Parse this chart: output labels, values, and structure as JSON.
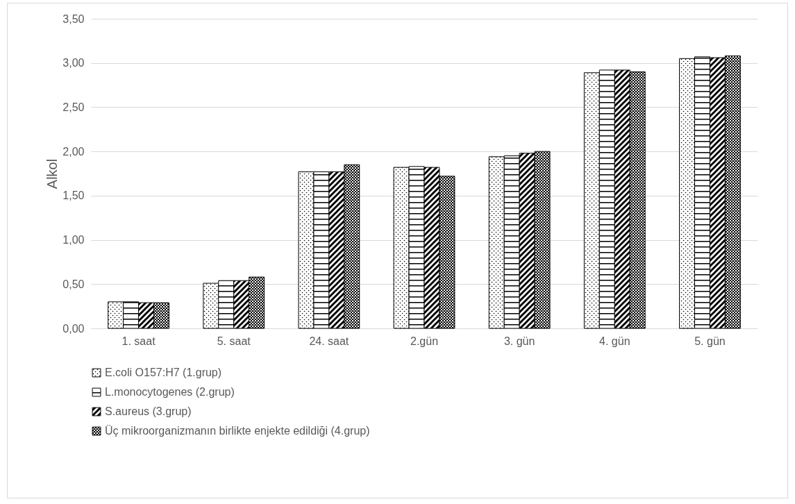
{
  "chart_data": {
    "type": "bar",
    "ylabel": "Alkol",
    "categories": [
      "1. saat",
      "5. saat",
      "24. saat",
      "2.gün",
      "3. gün",
      "4. gün",
      "5. gün"
    ],
    "series": [
      {
        "name": "E.coli O157:H7  (1.grup)",
        "color": "#000000",
        "values": [
          0.3,
          0.51,
          1.77,
          1.82,
          1.94,
          2.89,
          3.05
        ]
      },
      {
        "name": "L.monocytogenes (2.grup)",
        "color": "#000000",
        "values": [
          0.3,
          0.54,
          1.77,
          1.83,
          1.95,
          2.92,
          3.07
        ]
      },
      {
        "name": "S.aureus (3.grup)",
        "color": "#000000",
        "values": [
          0.29,
          0.54,
          1.77,
          1.82,
          1.98,
          2.92,
          3.06
        ]
      },
      {
        "name": "Üç mikroorganizmanın birlikte enjekte edildiği (4.grup)",
        "color": "#000000",
        "values": [
          0.29,
          0.58,
          1.85,
          1.72,
          2.0,
          2.9,
          3.08
        ]
      }
    ],
    "ylim": [
      0,
      3.5
    ],
    "yticks": [
      {
        "value": 0,
        "label": "0,00"
      },
      {
        "value": 0.5,
        "label": "0,50"
      },
      {
        "value": 1,
        "label": "1,00"
      },
      {
        "value": 1.5,
        "label": "1,50"
      },
      {
        "value": 2,
        "label": "2,00"
      },
      {
        "value": 2.5,
        "label": "2,50"
      },
      {
        "value": 3,
        "label": "3,00"
      },
      {
        "value": 3.5,
        "label": "3,50"
      }
    ],
    "grid": "y",
    "legend": "bottom"
  }
}
